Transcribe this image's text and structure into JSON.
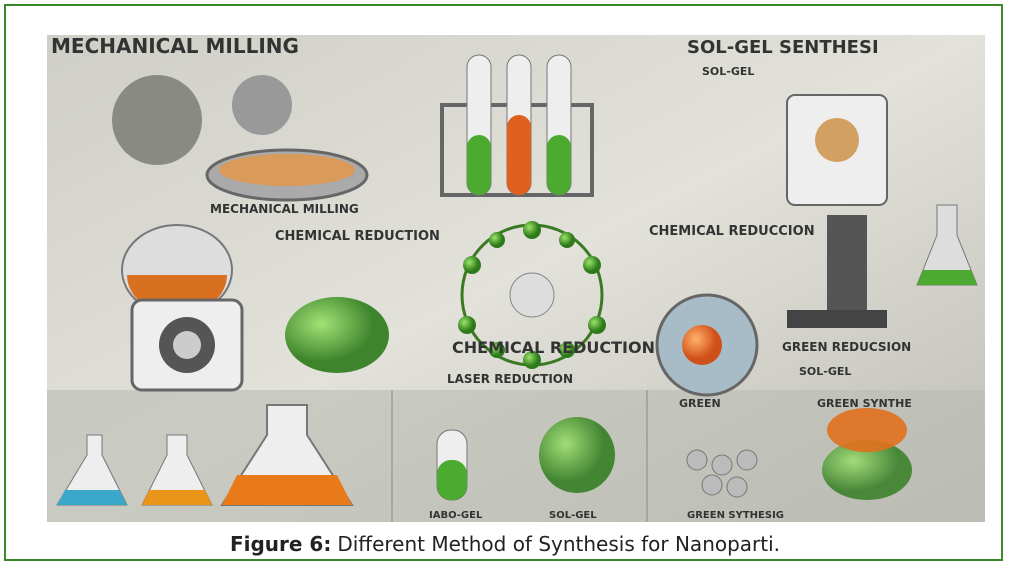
{
  "figure": {
    "image_labels": [
      "MECHANICAL MILLING",
      "SOL-GEL SENTHESI",
      "SOL-GEL",
      "MECHANICAL MILLING",
      "CHEMICAL REDUCTION",
      "CHEMICAL REDUCCION",
      "CHEMICAL REDUCTION",
      "LASER REDUCTION",
      "GREEN REDUCSION",
      "SOL-GEL",
      "GREEN",
      "GREEN SYNTHE",
      "IABO-GEL",
      "SOL-GEL",
      "GREEN SYTHESIG"
    ],
    "caption": {
      "label": "Figure 6:",
      "text": "Different Method of Synthesis for Nanoparti."
    }
  }
}
